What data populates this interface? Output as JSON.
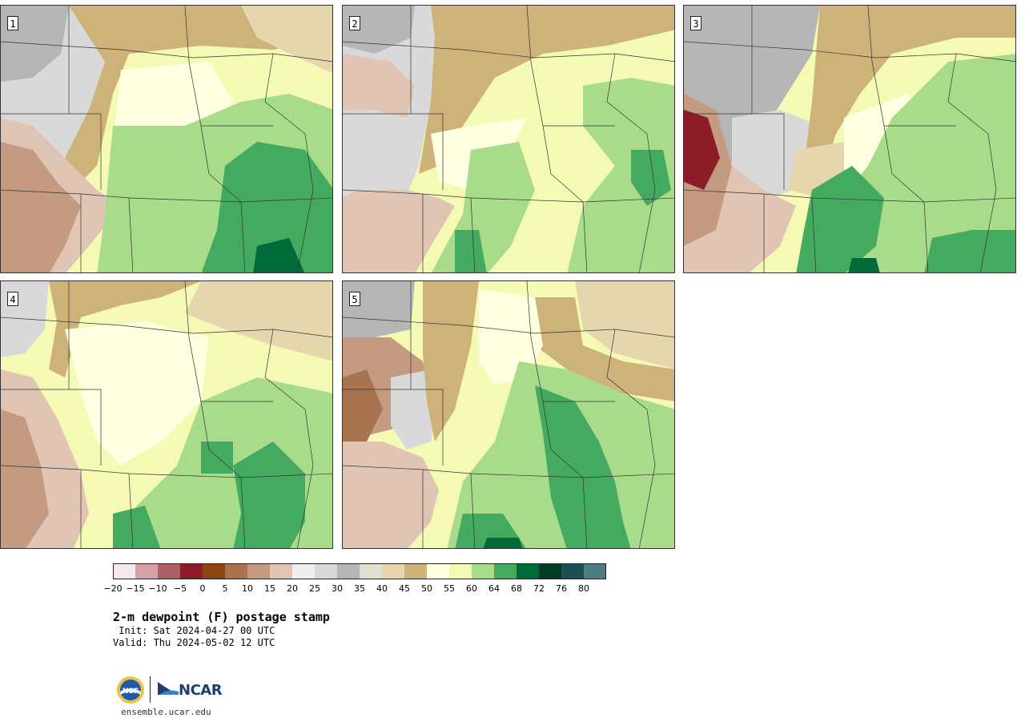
{
  "figure": {
    "title": "2-m dewpoint (F) postage stamp",
    "init": " Init: Sat 2024-04-27 00 UTC",
    "valid": "Valid: Thu 2024-05-02 12 UTC",
    "website": "ensemble.ucar.edu",
    "logos": [
      "NSF",
      "NCAR"
    ]
  },
  "panels": [
    {
      "label": "1"
    },
    {
      "label": "2"
    },
    {
      "label": "3"
    },
    {
      "label": "4"
    },
    {
      "label": "5"
    }
  ],
  "colorbar": {
    "units": "F",
    "tick_labels": [
      "−20",
      "−15",
      "−10",
      "−5",
      "0",
      "5",
      "10",
      "15",
      "20",
      "25",
      "30",
      "35",
      "40",
      "45",
      "50",
      "55",
      "60",
      "64",
      "68",
      "72",
      "76",
      "80"
    ],
    "colors": [
      "#f6e8ea",
      "#d4a1a8",
      "#b05e66",
      "#8c1d28",
      "#8b4513",
      "#a8734f",
      "#c49a80",
      "#e0c4b4",
      "#efefef",
      "#d9d9d9",
      "#b6b6b6",
      "#e0e0d0",
      "#e6d6ad",
      "#cdb279",
      "#fefee0",
      "#f4f9b4",
      "#a8dc8a",
      "#44aa5f",
      "#006a38",
      "#013d25",
      "#1d4f53",
      "#4e7c82"
    ]
  },
  "map_colors": {
    "gray_dark": "#b6b6b6",
    "gray_light": "#d9d9d9",
    "tan_light": "#e6d6ad",
    "tan": "#cdb279",
    "cream": "#fefee0",
    "yellow": "#f4f9b4",
    "green_light": "#a8dc8a",
    "green": "#44aa5f",
    "green_dark": "#006a38",
    "brown_light": "#e0c4b4",
    "brown": "#c49a80",
    "brown_dark": "#a8734f",
    "red": "#8c1d28"
  }
}
